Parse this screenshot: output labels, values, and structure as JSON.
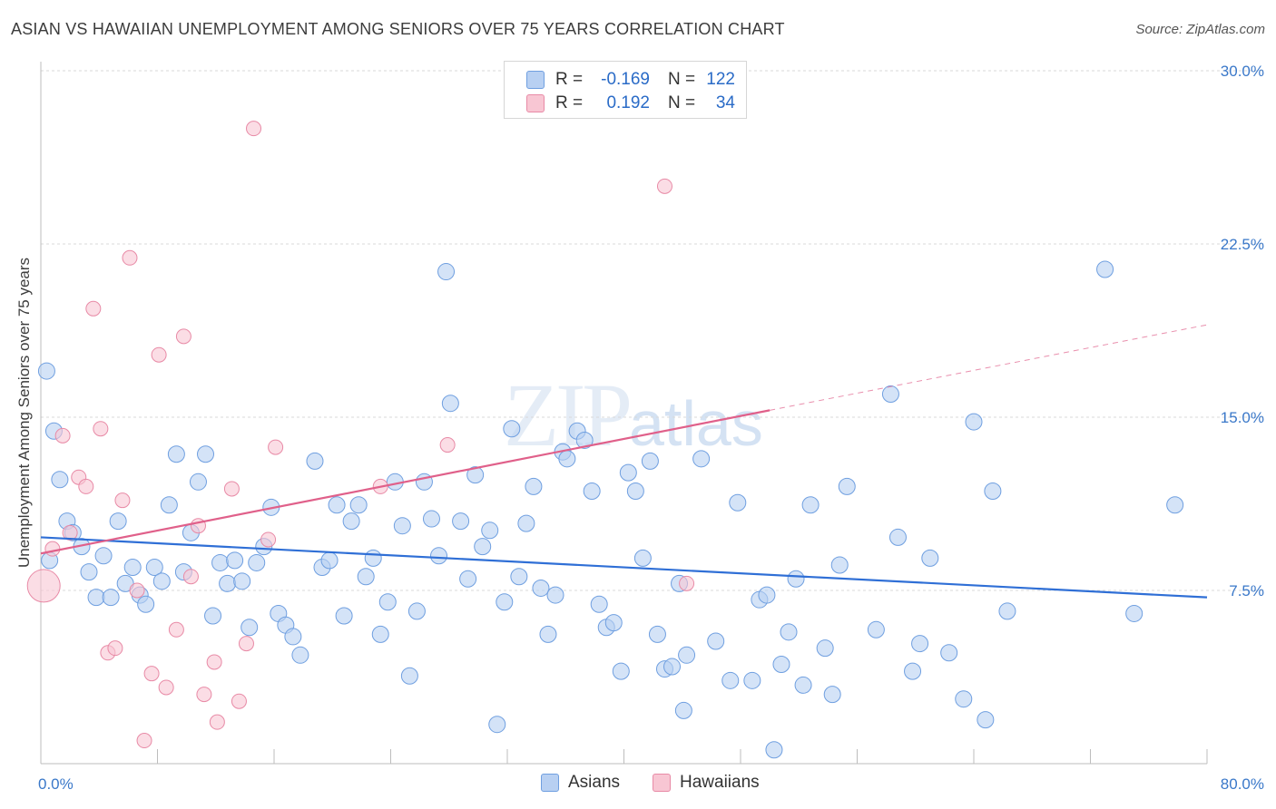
{
  "title": "ASIAN VS HAWAIIAN UNEMPLOYMENT AMONG SENIORS OVER 75 YEARS CORRELATION CHART",
  "source": "Source: ZipAtlas.com",
  "watermark": {
    "main": "ZIP",
    "sub": "atlas"
  },
  "legend": {
    "rows": [
      {
        "r_label": "R =",
        "r_value": "-0.169",
        "n_label": "N =",
        "n_value": "122"
      },
      {
        "r_label": "R =",
        "r_value": "0.192",
        "n_label": "N =",
        "n_value": "34"
      }
    ]
  },
  "bottom_legend": {
    "asians": "Asians",
    "hawaiians": "Hawaiians"
  },
  "colors": {
    "asian_fill": "#b8d0f2",
    "asian_stroke": "#6f9fe0",
    "asian_line": "#2f6fd6",
    "hawaiian_fill": "#f8c6d3",
    "hawaiian_stroke": "#e88aa6",
    "hawaiian_line": "#e0608a",
    "axis_label": "#3a78c9",
    "grid": "#d9d9d9"
  },
  "chart_data": {
    "type": "scatter",
    "title": "ASIAN VS HAWAIIAN UNEMPLOYMENT AMONG SENIORS OVER 75 YEARS CORRELATION CHART",
    "xlabel": "",
    "ylabel": "Unemployment Among Seniors over 75 years",
    "xlim": [
      0,
      80
    ],
    "ylim": [
      0,
      30
    ],
    "x_tick_labels": [
      "0.0%",
      "80.0%"
    ],
    "y_ticks": [
      7.5,
      15.0,
      22.5,
      30.0
    ],
    "y_tick_labels": [
      "7.5%",
      "15.0%",
      "22.5%",
      "30.0%"
    ],
    "grid": true,
    "legend_position": "top-center",
    "series": [
      {
        "name": "Asians",
        "points": [
          [
            0.4,
            17.0
          ],
          [
            0.9,
            14.4
          ],
          [
            1.3,
            12.3
          ],
          [
            1.8,
            10.5
          ],
          [
            2.2,
            10.0
          ],
          [
            2.8,
            9.4
          ],
          [
            3.3,
            8.3
          ],
          [
            3.8,
            7.2
          ],
          [
            4.3,
            9.0
          ],
          [
            4.8,
            7.2
          ],
          [
            5.3,
            10.5
          ],
          [
            5.8,
            7.8
          ],
          [
            6.3,
            8.5
          ],
          [
            6.8,
            7.3
          ],
          [
            7.2,
            6.9
          ],
          [
            7.8,
            8.5
          ],
          [
            8.3,
            7.9
          ],
          [
            8.8,
            11.2
          ],
          [
            9.3,
            13.4
          ],
          [
            9.8,
            8.3
          ],
          [
            10.3,
            10.0
          ],
          [
            10.8,
            12.2
          ],
          [
            11.3,
            13.4
          ],
          [
            11.8,
            6.4
          ],
          [
            12.3,
            8.7
          ],
          [
            12.8,
            7.8
          ],
          [
            13.3,
            8.8
          ],
          [
            13.8,
            7.9
          ],
          [
            14.3,
            5.9
          ],
          [
            14.8,
            8.7
          ],
          [
            15.3,
            9.4
          ],
          [
            15.8,
            11.1
          ],
          [
            16.3,
            6.5
          ],
          [
            16.8,
            6.0
          ],
          [
            17.3,
            5.5
          ],
          [
            17.8,
            4.7
          ],
          [
            18.8,
            13.1
          ],
          [
            19.3,
            8.5
          ],
          [
            19.8,
            8.8
          ],
          [
            20.3,
            11.2
          ],
          [
            20.8,
            6.4
          ],
          [
            21.3,
            10.5
          ],
          [
            21.8,
            11.2
          ],
          [
            22.3,
            8.1
          ],
          [
            22.8,
            8.9
          ],
          [
            23.3,
            5.6
          ],
          [
            23.8,
            7.0
          ],
          [
            24.3,
            12.2
          ],
          [
            24.8,
            10.3
          ],
          [
            25.3,
            3.8
          ],
          [
            25.8,
            6.6
          ],
          [
            26.3,
            12.2
          ],
          [
            26.8,
            10.6
          ],
          [
            27.3,
            9.0
          ],
          [
            27.8,
            21.3
          ],
          [
            28.1,
            15.6
          ],
          [
            28.8,
            10.5
          ],
          [
            29.3,
            8.0
          ],
          [
            29.8,
            12.5
          ],
          [
            30.3,
            9.4
          ],
          [
            30.8,
            10.1
          ],
          [
            31.3,
            1.7
          ],
          [
            31.8,
            7.0
          ],
          [
            32.3,
            14.5
          ],
          [
            32.8,
            8.1
          ],
          [
            33.3,
            10.4
          ],
          [
            33.8,
            12.0
          ],
          [
            34.3,
            7.6
          ],
          [
            34.8,
            5.6
          ],
          [
            35.3,
            7.3
          ],
          [
            35.8,
            13.5
          ],
          [
            36.1,
            13.2
          ],
          [
            36.8,
            14.4
          ],
          [
            37.3,
            14.0
          ],
          [
            37.8,
            11.8
          ],
          [
            38.3,
            6.9
          ],
          [
            38.8,
            5.9
          ],
          [
            39.3,
            6.1
          ],
          [
            39.8,
            4.0
          ],
          [
            40.3,
            12.6
          ],
          [
            40.8,
            11.8
          ],
          [
            41.3,
            8.9
          ],
          [
            41.8,
            13.1
          ],
          [
            42.3,
            5.6
          ],
          [
            42.8,
            4.1
          ],
          [
            43.3,
            4.2
          ],
          [
            43.8,
            7.8
          ],
          [
            44.1,
            2.3
          ],
          [
            44.3,
            4.7
          ],
          [
            45.3,
            13.2
          ],
          [
            46.3,
            5.3
          ],
          [
            47.3,
            3.6
          ],
          [
            47.8,
            11.3
          ],
          [
            48.8,
            3.6
          ],
          [
            49.3,
            7.1
          ],
          [
            49.8,
            7.3
          ],
          [
            50.3,
            0.6
          ],
          [
            50.8,
            4.3
          ],
          [
            51.3,
            5.7
          ],
          [
            51.8,
            8.0
          ],
          [
            52.3,
            3.4
          ],
          [
            52.8,
            11.2
          ],
          [
            53.8,
            5.0
          ],
          [
            54.3,
            3.0
          ],
          [
            54.8,
            8.6
          ],
          [
            55.3,
            12.0
          ],
          [
            57.3,
            5.8
          ],
          [
            58.3,
            16.0
          ],
          [
            58.8,
            9.8
          ],
          [
            59.8,
            4.0
          ],
          [
            60.3,
            5.2
          ],
          [
            61.0,
            8.9
          ],
          [
            62.3,
            4.8
          ],
          [
            63.3,
            2.8
          ],
          [
            64.0,
            14.8
          ],
          [
            64.8,
            1.9
          ],
          [
            65.3,
            11.8
          ],
          [
            66.3,
            6.6
          ],
          [
            73.0,
            21.4
          ],
          [
            75.0,
            6.5
          ],
          [
            77.8,
            11.2
          ],
          [
            0.6,
            8.8
          ]
        ],
        "trend": {
          "x": [
            0,
            80
          ],
          "y": [
            9.8,
            7.2
          ],
          "style": "solid"
        }
      },
      {
        "name": "Hawaiians",
        "points": [
          [
            0.2,
            7.7
          ],
          [
            0.8,
            9.3
          ],
          [
            1.5,
            14.2
          ],
          [
            2.0,
            10.0
          ],
          [
            2.6,
            12.4
          ],
          [
            3.1,
            12.0
          ],
          [
            3.6,
            19.7
          ],
          [
            4.1,
            14.5
          ],
          [
            4.6,
            4.8
          ],
          [
            5.1,
            5.0
          ],
          [
            5.6,
            11.4
          ],
          [
            6.1,
            21.9
          ],
          [
            6.6,
            7.5
          ],
          [
            7.1,
            1.0
          ],
          [
            7.6,
            3.9
          ],
          [
            8.1,
            17.7
          ],
          [
            8.6,
            3.3
          ],
          [
            9.3,
            5.8
          ],
          [
            9.8,
            18.5
          ],
          [
            10.3,
            8.1
          ],
          [
            10.8,
            10.3
          ],
          [
            11.2,
            3.0
          ],
          [
            11.9,
            4.4
          ],
          [
            12.1,
            1.8
          ],
          [
            13.1,
            11.9
          ],
          [
            13.6,
            2.7
          ],
          [
            14.1,
            5.2
          ],
          [
            14.6,
            27.5
          ],
          [
            15.6,
            9.7
          ],
          [
            16.1,
            13.7
          ],
          [
            23.3,
            12.0
          ],
          [
            27.9,
            13.8
          ],
          [
            42.8,
            25.0
          ],
          [
            44.3,
            7.8
          ]
        ],
        "trend_solid": {
          "x": [
            0,
            50
          ],
          "y": [
            9.1,
            15.3
          ]
        },
        "trend_dashed": {
          "x": [
            50,
            80
          ],
          "y": [
            15.3,
            19.0
          ]
        }
      }
    ]
  }
}
